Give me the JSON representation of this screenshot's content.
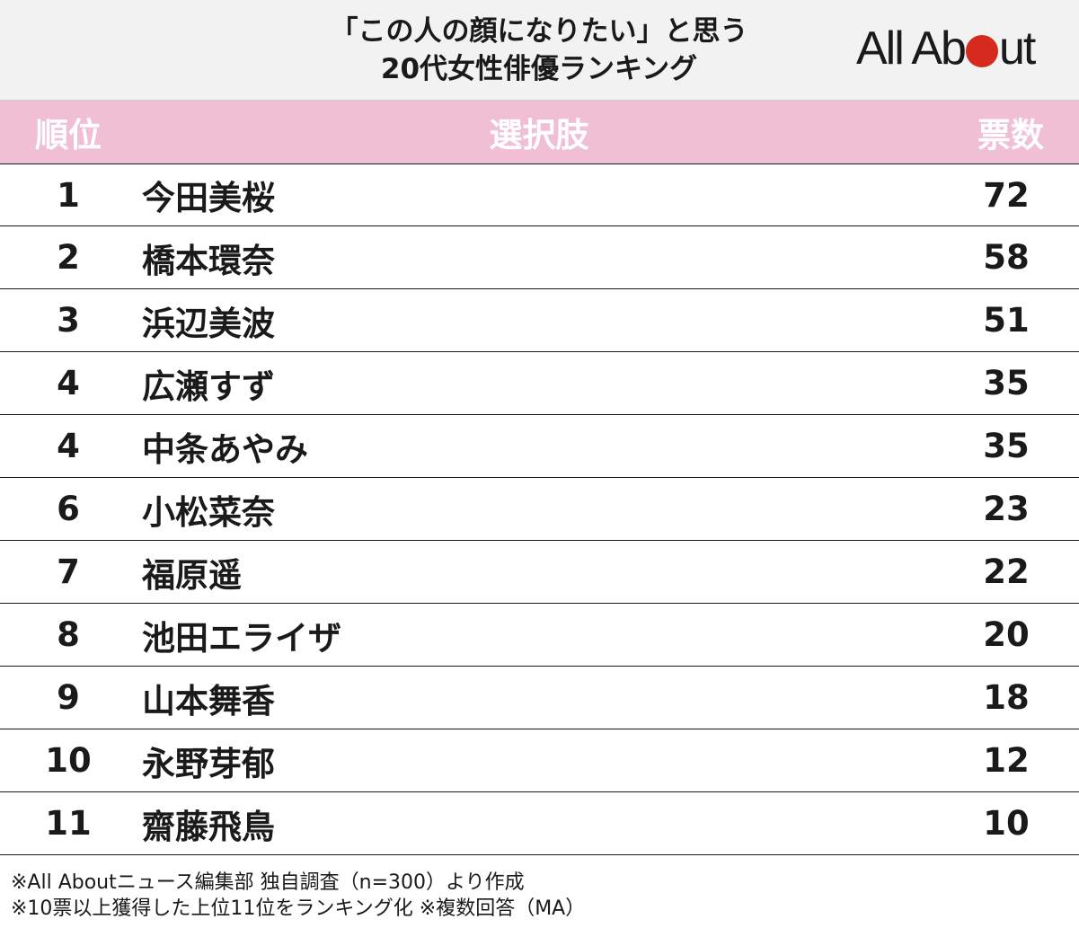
{
  "title": {
    "line1": "「この人の顔になりたい」と思う",
    "line2": "20代女性俳優ランキング"
  },
  "brand": {
    "part1": "All Ab",
    "part2": "ut",
    "dot_color": "#d62a1e"
  },
  "colors": {
    "header_bg": "#f2f2f2",
    "table_header_bg": "#f0bfd4",
    "table_header_text": "#ffffff"
  },
  "table": {
    "headers": {
      "rank": "順位",
      "name": "選択肢",
      "votes": "票数"
    },
    "rows": [
      {
        "rank": "1",
        "name": "今田美桜",
        "votes": "72"
      },
      {
        "rank": "2",
        "name": "橋本環奈",
        "votes": "58"
      },
      {
        "rank": "3",
        "name": "浜辺美波",
        "votes": "51"
      },
      {
        "rank": "4",
        "name": "広瀬すず",
        "votes": "35"
      },
      {
        "rank": "4",
        "name": "中条あやみ",
        "votes": "35"
      },
      {
        "rank": "6",
        "name": "小松菜奈",
        "votes": "23"
      },
      {
        "rank": "7",
        "name": "福原遥",
        "votes": "22"
      },
      {
        "rank": "8",
        "name": "池田エライザ",
        "votes": "20"
      },
      {
        "rank": "9",
        "name": "山本舞香",
        "votes": "18"
      },
      {
        "rank": "10",
        "name": "永野芽郁",
        "votes": "12"
      },
      {
        "rank": "11",
        "name": "齋藤飛鳥",
        "votes": "10"
      }
    ]
  },
  "chart_data": {
    "type": "table",
    "title": "「この人の顔になりたい」と思う 20代女性俳優ランキング",
    "columns": [
      "順位",
      "選択肢",
      "票数"
    ],
    "categories": [
      "今田美桜",
      "橋本環奈",
      "浜辺美波",
      "広瀬すず",
      "中条あやみ",
      "小松菜奈",
      "福原遥",
      "池田エライザ",
      "山本舞香",
      "永野芽郁",
      "齋藤飛鳥"
    ],
    "ranks": [
      1,
      2,
      3,
      4,
      4,
      6,
      7,
      8,
      9,
      10,
      11
    ],
    "values": [
      72,
      58,
      51,
      35,
      35,
      23,
      22,
      20,
      18,
      12,
      10
    ]
  },
  "notes": {
    "line1": "※All Aboutニュース編集部 独自調査（n=300）より作成",
    "line2": "※10票以上獲得した上位11位をランキング化 ※複数回答（MA）"
  }
}
